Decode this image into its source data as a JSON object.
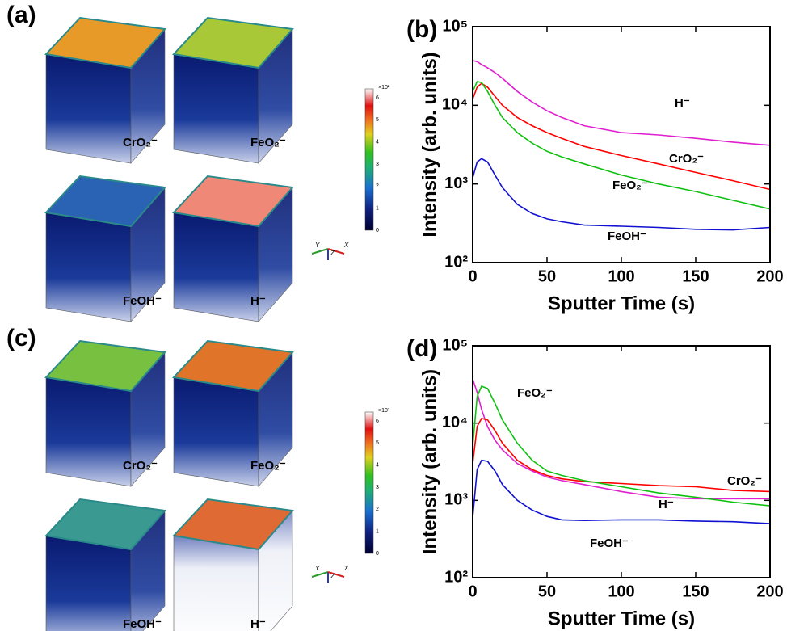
{
  "cube_panels": [
    {
      "label": "(a)",
      "cubes": [
        "CrO₂⁻",
        "FeO₂⁻",
        "FeOH⁻",
        "H⁻"
      ],
      "colorbar": {
        "ticks": [
          0,
          1,
          2,
          3,
          4,
          5,
          6
        ],
        "scale_label": "×10²"
      },
      "axes": [
        "Y",
        "Z",
        "X"
      ]
    },
    {
      "label": "(c)",
      "cubes": [
        "CrO₂⁻",
        "FeO₂⁻",
        "FeOH⁻",
        "H⁻"
      ],
      "colorbar": {
        "ticks": [
          0,
          1,
          2,
          3,
          4,
          5,
          6
        ],
        "scale_label": "×10²"
      },
      "axes": [
        "Y",
        "Z",
        "X"
      ]
    }
  ],
  "chart_data": [
    {
      "type": "line",
      "label": "(b)",
      "xlabel": "Sputter Time (s)",
      "ylabel": "Intensity (arb. units)",
      "yscale": "log",
      "xlim": [
        0,
        200
      ],
      "ylim": [
        100,
        100000
      ],
      "xticks": [
        0,
        50,
        100,
        150,
        200
      ],
      "yticks": [
        {
          "value": 100,
          "label": "10²"
        },
        {
          "value": 1000,
          "label": "10³"
        },
        {
          "value": 10000,
          "label": "10⁴"
        },
        {
          "value": 100000,
          "label": "10⁵"
        }
      ],
      "x": [
        0,
        3,
        6,
        10,
        15,
        20,
        30,
        40,
        50,
        60,
        75,
        100,
        125,
        150,
        175,
        200
      ],
      "series": [
        {
          "name": "H⁻",
          "color": "#e020d0",
          "values": [
            37000,
            36000,
            33000,
            30000,
            26000,
            22000,
            15000,
            11000,
            8500,
            7000,
            5500,
            4500,
            4200,
            3800,
            3400,
            3100
          ]
        },
        {
          "name": "CrO₂⁻",
          "color": "#ff0000",
          "values": [
            12000,
            17000,
            19000,
            17000,
            13000,
            10000,
            7000,
            5500,
            4500,
            3800,
            3000,
            2300,
            1800,
            1400,
            1100,
            850
          ]
        },
        {
          "name": "FeO₂⁻",
          "color": "#10c010",
          "values": [
            15000,
            20000,
            19500,
            15000,
            10000,
            7000,
            4500,
            3300,
            2600,
            2200,
            1800,
            1300,
            1000,
            800,
            620,
            480
          ]
        },
        {
          "name": "FeOH⁻",
          "color": "#1010d0",
          "values": [
            1200,
            1900,
            2100,
            1900,
            1300,
            900,
            550,
            420,
            360,
            330,
            300,
            290,
            280,
            265,
            260,
            280
          ]
        }
      ]
    },
    {
      "type": "line",
      "label": "(d)",
      "xlabel": "Sputter Time (s)",
      "ylabel": "Intensity (arb. units)",
      "yscale": "log",
      "xlim": [
        0,
        200
      ],
      "ylim": [
        100,
        100000
      ],
      "xticks": [
        0,
        50,
        100,
        150,
        200
      ],
      "yticks": [
        {
          "value": 100,
          "label": "10²"
        },
        {
          "value": 1000,
          "label": "10³"
        },
        {
          "value": 10000,
          "label": "10⁴"
        },
        {
          "value": 100000,
          "label": "10⁵"
        }
      ],
      "x": [
        0,
        3,
        6,
        10,
        15,
        20,
        30,
        40,
        50,
        60,
        75,
        100,
        125,
        150,
        175,
        200
      ],
      "series": [
        {
          "name": "H⁻",
          "color": "#e020d0",
          "values": [
            37000,
            25000,
            15000,
            9000,
            6000,
            4500,
            3000,
            2400,
            2000,
            1800,
            1600,
            1300,
            1100,
            1050,
            1050,
            1050
          ]
        },
        {
          "name": "CrO₂⁻",
          "color": "#ff0000",
          "values": [
            3000,
            9000,
            11500,
            11000,
            8000,
            5500,
            3300,
            2500,
            2100,
            1900,
            1750,
            1650,
            1550,
            1500,
            1350,
            1300
          ]
        },
        {
          "name": "FeO₂⁻",
          "color": "#10c010",
          "values": [
            5000,
            22000,
            30000,
            28000,
            18000,
            11000,
            5500,
            3300,
            2400,
            2100,
            1800,
            1500,
            1250,
            1100,
            950,
            850
          ]
        },
        {
          "name": "FeOH⁻",
          "color": "#1010d0",
          "values": [
            600,
            2500,
            3300,
            3200,
            2400,
            1600,
            1000,
            750,
            620,
            560,
            550,
            560,
            560,
            540,
            530,
            500
          ]
        }
      ]
    }
  ]
}
